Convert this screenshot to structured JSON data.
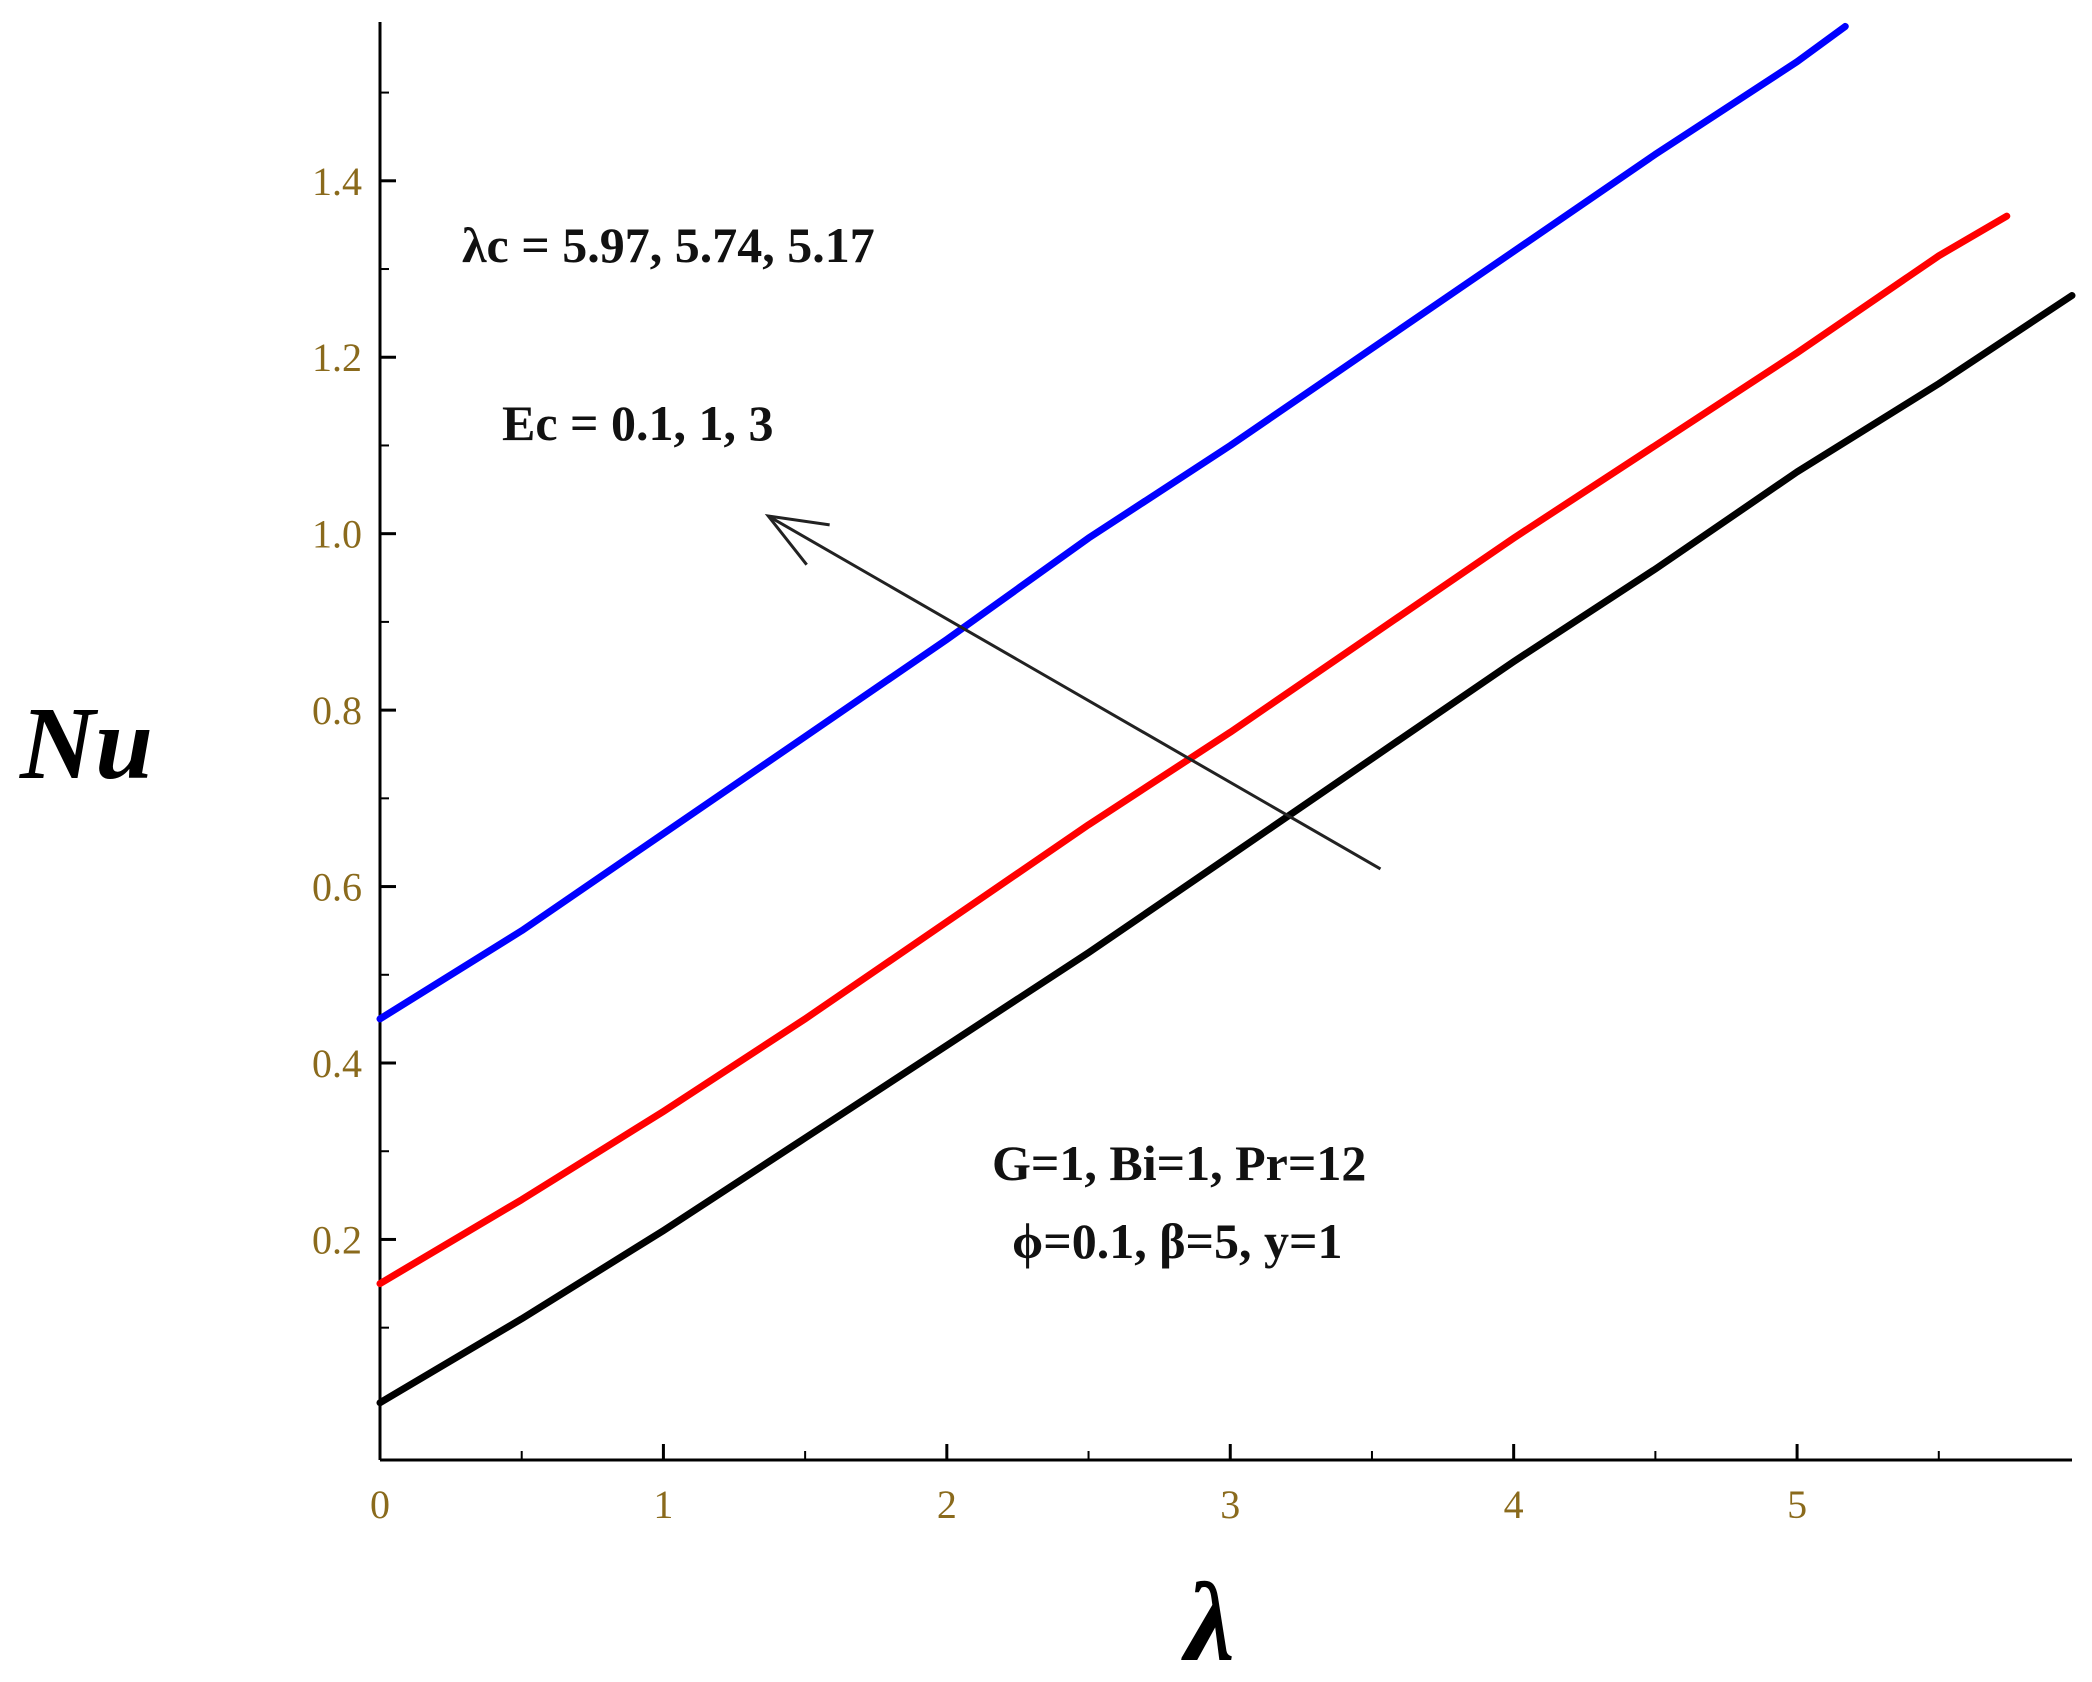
{
  "chart_data": {
    "type": "line",
    "xlabel": "λ",
    "ylabel": "Nu",
    "xlim": [
      0,
      5.97
    ],
    "ylim": [
      -0.05,
      1.58
    ],
    "x_ticks": [
      0,
      1,
      2,
      3,
      4,
      5
    ],
    "y_ticks": [
      0.2,
      0.4,
      0.6,
      0.8,
      1.0,
      1.2,
      1.4
    ],
    "x_tick_labels": [
      "0",
      "1",
      "2",
      "3",
      "4",
      "5"
    ],
    "y_tick_labels": [
      "0.2",
      "0.4",
      "0.6",
      "0.8",
      "1.0",
      "1.2",
      "1.4"
    ],
    "grid": false,
    "series": [
      {
        "color": "#0000ff",
        "x": [
          0,
          0.5,
          1.0,
          1.5,
          2.0,
          2.5,
          3.0,
          3.5,
          4.0,
          4.5,
          5.0,
          5.17
        ],
        "y": [
          0.45,
          0.55,
          0.66,
          0.77,
          0.88,
          0.995,
          1.1,
          1.21,
          1.32,
          1.43,
          1.535,
          1.575
        ]
      },
      {
        "color": "#ff0000",
        "x": [
          0,
          0.5,
          1.0,
          1.5,
          2.0,
          2.5,
          3.0,
          3.5,
          4.0,
          4.5,
          5.0,
          5.5,
          5.74
        ],
        "y": [
          0.15,
          0.245,
          0.345,
          0.45,
          0.56,
          0.67,
          0.775,
          0.885,
          0.995,
          1.1,
          1.205,
          1.315,
          1.36
        ]
      },
      {
        "color": "#000000",
        "x": [
          0,
          0.5,
          1.0,
          1.5,
          2.0,
          2.5,
          3.0,
          3.5,
          4.0,
          4.5,
          5.0,
          5.5,
          5.97
        ],
        "y": [
          0.015,
          0.11,
          0.21,
          0.315,
          0.42,
          0.525,
          0.635,
          0.745,
          0.855,
          0.96,
          1.07,
          1.17,
          1.27
        ]
      }
    ],
    "annotations": {
      "lambda_c": "λc = 5.97, 5.74, 5.17",
      "ec": "Ec = 0.1, 1, 3",
      "params_line1": "G=1, Bi=1, Pr=12",
      "params_line2": "ϕ=0.1, β=5, y=1"
    },
    "arrow": {
      "from": [
        3.53,
        0.62
      ],
      "to": [
        1.37,
        1.02
      ]
    }
  }
}
